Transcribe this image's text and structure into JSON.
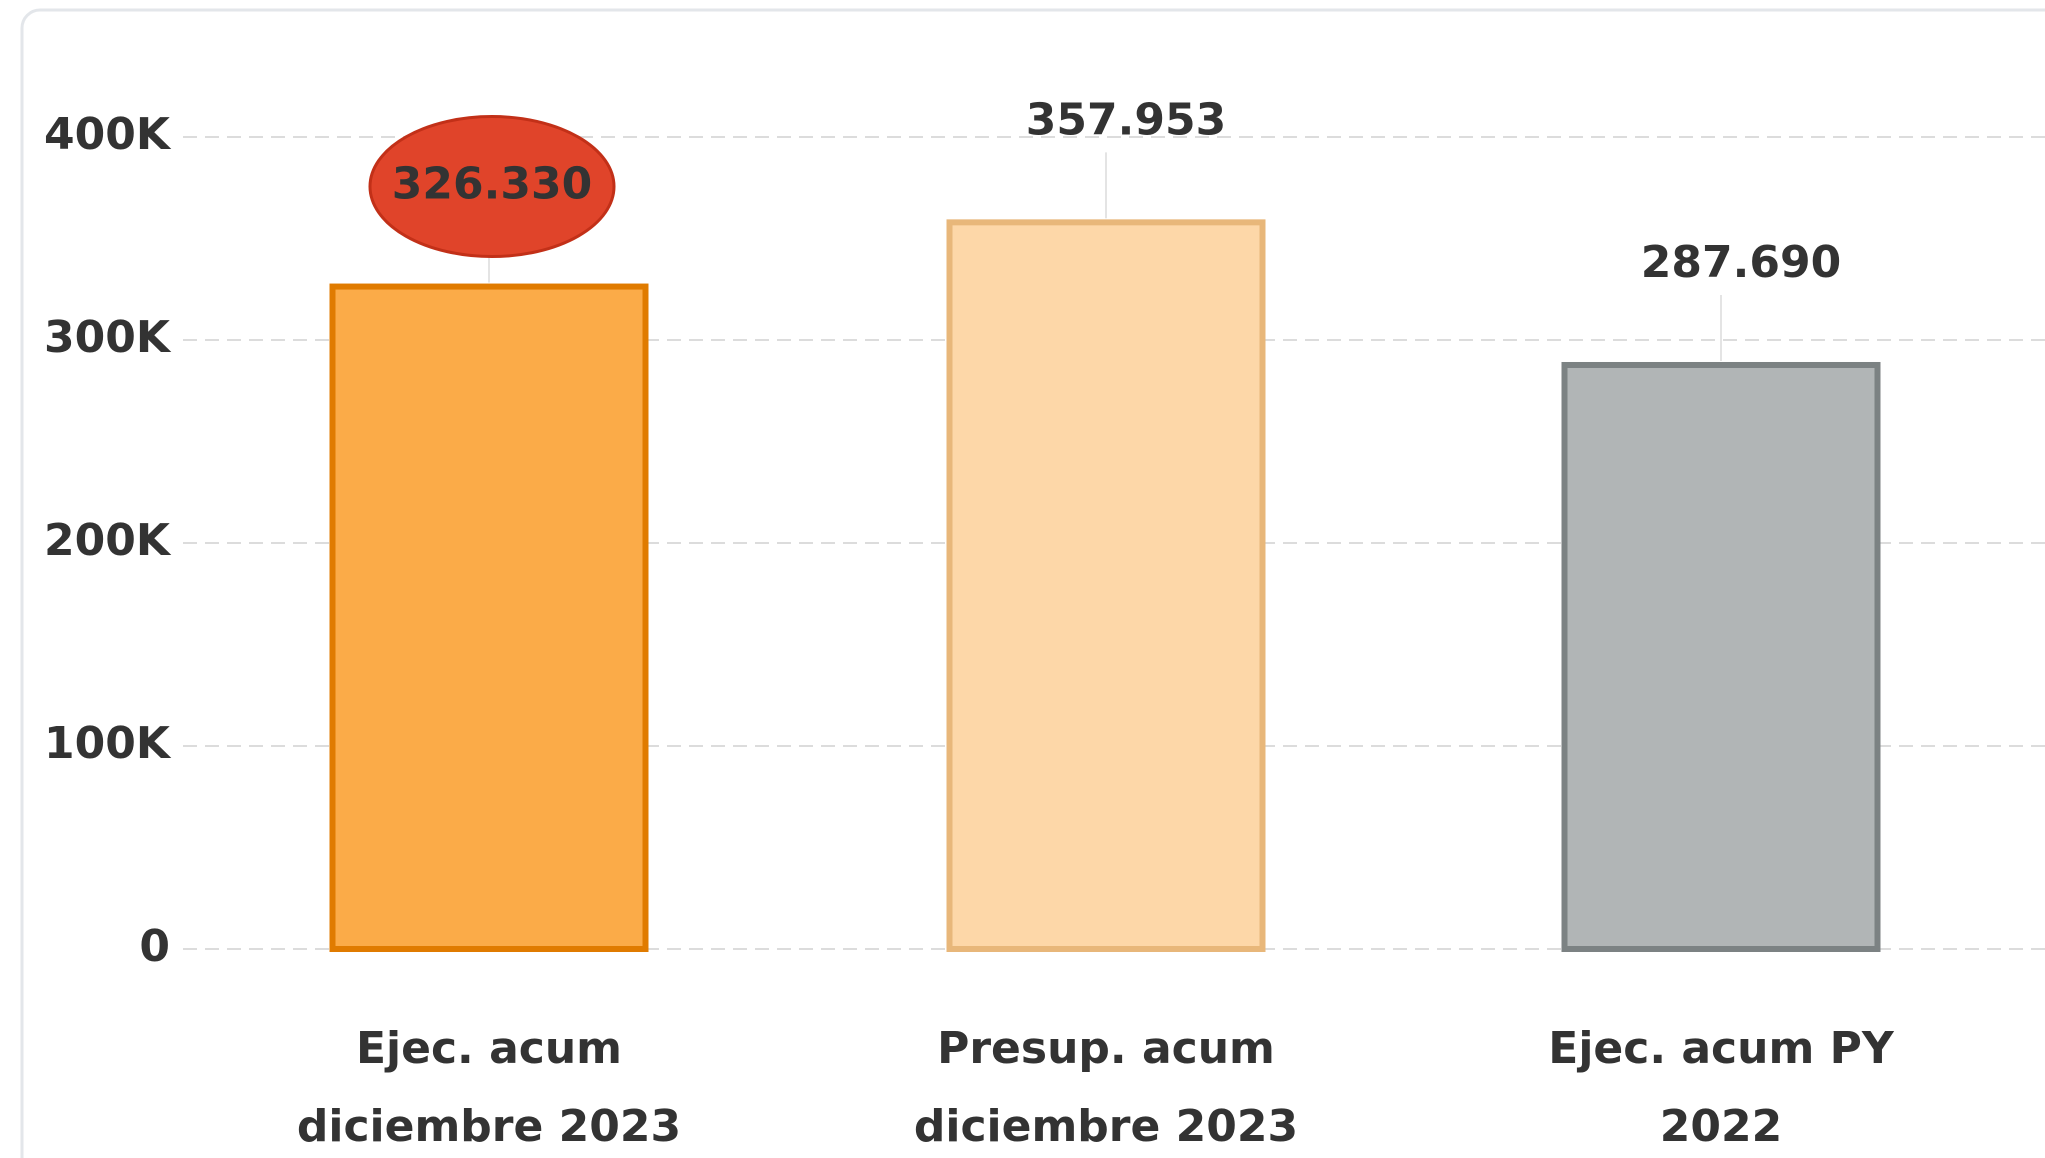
{
  "chart_data": {
    "type": "bar",
    "categories": [
      "Ejec. acum diciembre 2023",
      "Presup. acum diciembre 2023",
      "Ejec. acum PY 2022"
    ],
    "values": [
      326330,
      357953,
      287690
    ],
    "value_labels": [
      "326.330",
      "357.953",
      "287.690"
    ],
    "colors": [
      "#fbab48",
      "#fdd7a8",
      "#b1b5b6"
    ],
    "stroke_colors": [
      "#e07b00",
      "#e8b77a",
      "#7c8283"
    ],
    "ylim": [
      0,
      400000
    ],
    "yticks": [
      0,
      {
        "value": 100000,
        "label": "100K"
      },
      {
        "value": 200000,
        "label": "200K"
      },
      {
        "value": 300000,
        "label": "300K"
      },
      {
        "value": 400000,
        "label": "400K"
      }
    ],
    "grid": true
  }
}
